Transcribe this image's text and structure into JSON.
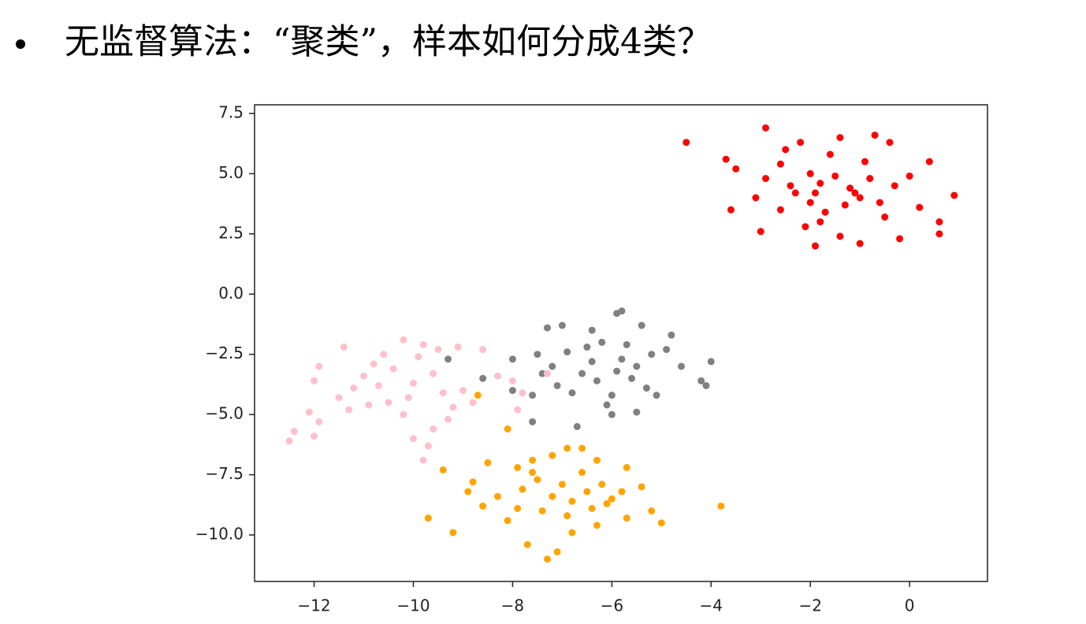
{
  "heading": "无监督算法：“聚类”，样本如何分成4类？",
  "chart_data": {
    "type": "scatter",
    "xlim": [
      -13.2,
      1.57
    ],
    "ylim": [
      -11.93,
      7.86
    ],
    "xticks": [
      {
        "value": -12,
        "label": "−12"
      },
      {
        "value": -10,
        "label": "−10"
      },
      {
        "value": -8,
        "label": "−8"
      },
      {
        "value": -6,
        "label": "−6"
      },
      {
        "value": -4,
        "label": "−4"
      },
      {
        "value": -2,
        "label": "−2"
      },
      0
    ],
    "yticks": [
      7.5,
      {
        "value": 5,
        "label": "5.0"
      },
      2.5,
      {
        "value": 0,
        "label": "0.0"
      },
      {
        "value": -2.5,
        "label": "−2.5"
      },
      {
        "value": -5,
        "label": "−5.0"
      },
      {
        "value": -7.5,
        "label": "−7.5"
      },
      {
        "value": -10,
        "label": "−10.0"
      }
    ],
    "grid": false,
    "series": [
      {
        "color": "#ff0000",
        "x": [
          -4.5,
          -2.9,
          -3.7,
          -3.5,
          -3.6,
          -3.0,
          -1.9,
          -1.0,
          -0.2,
          0.6,
          0.6,
          0.9,
          0.2,
          0.4,
          -0.4,
          -0.7,
          -1.4,
          -2.2,
          -2.5,
          -2.6,
          -2.0,
          -1.8,
          -1.5,
          -1.2,
          -1.0,
          -0.8,
          -0.3,
          -2.3,
          -2.0,
          -1.7,
          -1.8,
          -1.4,
          -2.6,
          -3.1,
          -2.9,
          -1.3,
          -0.6,
          -0.9,
          -1.6,
          -2.4,
          -1.9,
          -1.1,
          0.0,
          -0.5,
          -2.1
        ],
        "y": [
          6.3,
          6.9,
          5.6,
          5.2,
          3.5,
          2.6,
          2.0,
          2.1,
          2.3,
          2.5,
          3.0,
          4.1,
          3.6,
          5.5,
          6.3,
          6.6,
          6.5,
          6.3,
          6.0,
          5.4,
          5.0,
          4.6,
          4.9,
          4.4,
          4.0,
          4.8,
          4.5,
          4.2,
          3.8,
          3.4,
          3.0,
          2.4,
          3.5,
          4.0,
          4.8,
          3.7,
          3.8,
          5.5,
          5.8,
          4.5,
          4.2,
          4.2,
          4.9,
          3.2,
          2.8
        ]
      },
      {
        "color": "#808080",
        "x": [
          -5.8,
          -5.9,
          -6.4,
          -7.0,
          -7.3,
          -5.4,
          -4.8,
          -4.0,
          -4.2,
          -4.1,
          -5.1,
          -5.5,
          -6.0,
          -6.7,
          -7.6,
          -7.6,
          -8.0,
          -8.6,
          -9.3,
          -8.0,
          -7.5,
          -7.2,
          -6.9,
          -6.5,
          -6.2,
          -5.7,
          -5.2,
          -4.9,
          -6.6,
          -6.3,
          -5.9,
          -5.6,
          -6.0,
          -6.8,
          -7.1,
          -5.3,
          -6.4,
          -5.8,
          -7.4,
          -6.1,
          -5.5,
          -4.6
        ],
        "y": [
          -0.7,
          -0.8,
          -1.5,
          -1.3,
          -1.4,
          -1.3,
          -1.7,
          -2.8,
          -3.6,
          -3.8,
          -4.2,
          -4.9,
          -5.0,
          -5.5,
          -5.3,
          -4.2,
          -4.0,
          -3.5,
          -2.7,
          -2.7,
          -2.5,
          -3.0,
          -2.4,
          -2.2,
          -2.0,
          -2.1,
          -2.5,
          -2.3,
          -3.3,
          -3.6,
          -3.2,
          -3.5,
          -4.2,
          -4.1,
          -3.8,
          -3.9,
          -2.8,
          -2.7,
          -3.3,
          -4.6,
          -3.0,
          -3.0
        ]
      },
      {
        "color": "#ffc0cb",
        "x": [
          -12.5,
          -12.0,
          -12.4,
          -11.9,
          -12.1,
          -12.0,
          -11.9,
          -11.5,
          -11.4,
          -11.0,
          -10.6,
          -10.2,
          -9.8,
          -9.5,
          -9.1,
          -8.6,
          -8.3,
          -8.0,
          -7.8,
          -7.9,
          -7.3,
          -8.8,
          -9.0,
          -9.3,
          -9.6,
          -9.7,
          -9.8,
          -10.0,
          -10.2,
          -10.5,
          -10.7,
          -10.9,
          -11.2,
          -10.4,
          -10.0,
          -9.6,
          -9.4,
          -9.2,
          -10.1,
          -10.8,
          -9.9,
          -11.3
        ],
        "y": [
          -6.1,
          -5.9,
          -5.7,
          -5.3,
          -4.9,
          -3.6,
          -3.0,
          -4.3,
          -2.2,
          -3.4,
          -2.5,
          -1.9,
          -2.1,
          -2.3,
          -2.2,
          -2.3,
          -3.4,
          -3.6,
          -4.1,
          -4.8,
          -3.3,
          -4.5,
          -4.0,
          -5.2,
          -5.6,
          -6.3,
          -6.9,
          -6.0,
          -5.0,
          -4.5,
          -3.8,
          -4.6,
          -3.9,
          -3.1,
          -3.7,
          -3.3,
          -4.1,
          -4.7,
          -4.3,
          -2.9,
          -2.6,
          -4.8
        ]
      },
      {
        "color": "#ffa500",
        "x": [
          -9.7,
          -9.2,
          -9.4,
          -8.7,
          -8.1,
          -8.8,
          -8.5,
          -7.9,
          -7.6,
          -7.2,
          -6.9,
          -6.6,
          -6.3,
          -5.7,
          -5.4,
          -5.2,
          -5.0,
          -5.7,
          -6.3,
          -6.8,
          -7.1,
          -7.3,
          -7.7,
          -8.1,
          -8.6,
          -8.9,
          -3.8,
          -7.8,
          -7.5,
          -7.2,
          -7.0,
          -6.8,
          -6.5,
          -6.2,
          -6.0,
          -5.8,
          -6.6,
          -7.4,
          -6.9,
          -6.4,
          -8.3,
          -7.9,
          -6.1,
          -7.6
        ],
        "y": [
          -9.3,
          -9.9,
          -7.3,
          -4.2,
          -5.6,
          -7.8,
          -7.0,
          -7.2,
          -6.9,
          -6.7,
          -6.4,
          -6.4,
          -6.9,
          -7.2,
          -8.0,
          -9.0,
          -9.5,
          -9.3,
          -9.6,
          -9.9,
          -10.7,
          -11.0,
          -10.4,
          -9.4,
          -8.8,
          -8.2,
          -8.8,
          -8.1,
          -7.7,
          -8.4,
          -7.9,
          -8.6,
          -8.2,
          -7.9,
          -8.5,
          -8.2,
          -7.4,
          -9.0,
          -9.2,
          -8.9,
          -8.4,
          -8.9,
          -8.7,
          -7.4
        ]
      }
    ]
  }
}
